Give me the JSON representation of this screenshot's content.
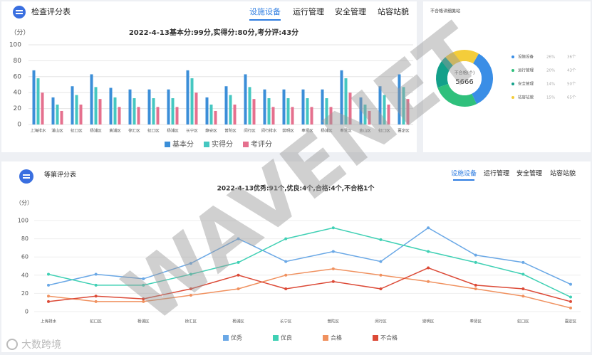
{
  "panels": [
    {
      "title": "检查评分表",
      "tabs": [
        "设施设备",
        "运行管理",
        "安全管理",
        "站容站貌"
      ]
    },
    {
      "title": "等第评分表",
      "tabs": [
        "设施设备",
        "运行管理",
        "安全管理",
        "站容站貌"
      ]
    }
  ],
  "watermark": "WAVENET",
  "logo": "大数跨境",
  "chart_data": [
    {
      "type": "bar",
      "title": "2022-4-13基本分:99分,实得分:80分,考分评:43分",
      "y_label": "（分）",
      "categories": [
        "上海排水",
        "浦山区",
        "虹口区",
        "杨浦区",
        "黄浦区",
        "徐汇区",
        "虹口区",
        "杨浦区",
        "长宁区",
        "静安区",
        "普陀区",
        "闵行区",
        "闵行排水",
        "崇明区",
        "奉贤区",
        "杨浦区",
        "奉贤区",
        "金山区",
        "虹口区",
        "嘉定区"
      ],
      "series": [
        {
          "name": "基本分",
          "color": "#3b8ed8",
          "values": [
            68,
            34,
            48,
            63,
            46,
            44,
            44,
            44,
            68,
            34,
            48,
            63,
            44,
            44,
            44,
            44,
            68,
            34,
            48,
            63
          ]
        },
        {
          "name": "实得分",
          "color": "#45c7c1",
          "values": [
            58,
            25,
            37,
            47,
            34,
            33,
            33,
            33,
            58,
            25,
            37,
            47,
            33,
            33,
            33,
            33,
            58,
            25,
            37,
            47
          ]
        },
        {
          "name": "考评分",
          "color": "#e5708e",
          "values": [
            40,
            17,
            25,
            32,
            22,
            22,
            22,
            22,
            40,
            17,
            25,
            32,
            22,
            22,
            22,
            22,
            40,
            17,
            25,
            32
          ]
        }
      ],
      "ylim": [
        0,
        100
      ],
      "yticks": [
        0,
        20,
        40,
        60,
        80,
        100
      ],
      "legend": "bottom"
    },
    {
      "type": "pie",
      "title": "不合格详细类站",
      "center_label": "不合格(个)",
      "center_value": "5666",
      "categories": [
        "设施设备",
        "运行管理",
        "安全管理",
        "站容站貌"
      ],
      "values": [
        26,
        20,
        14,
        15
      ],
      "value_labels": [
        "26%",
        "20%",
        "14%",
        "15%"
      ],
      "count_labels": [
        "36个",
        "43个",
        "50个",
        "65个"
      ],
      "colors": [
        "#3a8ee6",
        "#2fc07c",
        "#13a08a",
        "#f4cd3a"
      ]
    },
    {
      "type": "line",
      "title": "2022-4-13优秀:91个,优良:4个,合格:4个,不合格1个",
      "y_label": "（分）",
      "categories": [
        "上海排水",
        "虹口区",
        "杨浦区",
        "徐汇区",
        "杨浦区",
        "长宁区",
        "普陀区",
        "闵行区",
        "崇明区",
        "奉贤区",
        "虹口区",
        "嘉定区"
      ],
      "series": [
        {
          "name": "优秀",
          "color": "#6aa8e6",
          "values": [
            29,
            41,
            36,
            53,
            80,
            55,
            66,
            55,
            92,
            62,
            54,
            30
          ]
        },
        {
          "name": "优良",
          "color": "#3fd0b4",
          "values": [
            41,
            29,
            29,
            41,
            54,
            80,
            92,
            79,
            66,
            54,
            41,
            16
          ]
        },
        {
          "name": "合格",
          "color": "#f0915f",
          "values": [
            17,
            11,
            11,
            18,
            25,
            40,
            47,
            40,
            33,
            25,
            17,
            4
          ]
        },
        {
          "name": "不合格",
          "color": "#dc4a37",
          "values": [
            11,
            17,
            14,
            25,
            40,
            25,
            33,
            25,
            48,
            29,
            25,
            11
          ]
        }
      ],
      "ylim": [
        0,
        100
      ],
      "yticks": [
        0,
        20,
        40,
        60,
        80,
        100
      ],
      "grid": true,
      "legend": "bottom"
    }
  ]
}
